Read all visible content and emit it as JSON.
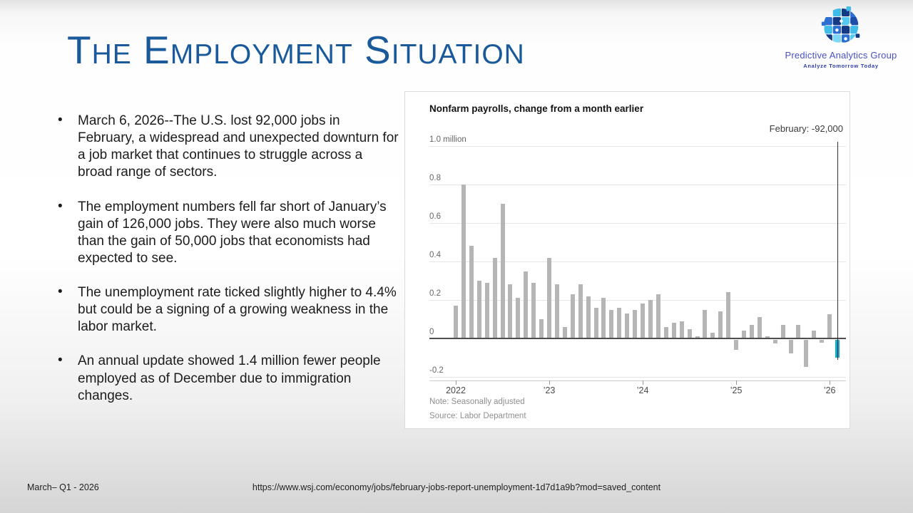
{
  "slide": {
    "title": "The Employment Situation",
    "bullets": [
      "March 6, 2026--The U.S. lost 92,000 jobs in February, a widespread and unexpected downturn for a job market that continues to struggle across a broad range of sectors.",
      "The employment numbers fell far short of January’s gain of 126,000 jobs. They were also much worse than the gain of 50,000 jobs that economists had expected to see.",
      "The unemployment rate ticked slightly higher to 4.4% but could be a signing of a growing weakness in the labor market.",
      "An annual update showed 1.4 million fewer people employed as of December due to immigration changes."
    ],
    "footer": {
      "date": "March– Q1 - 2026",
      "url": "https://www.wsj.com/economy/jobs/february-jobs-report-unemployment-1d7d1a9b?mod=saved_content"
    }
  },
  "logo": {
    "name": "Predictive Analytics Group",
    "tagline": "Analyze Tomorrow Today",
    "colors": {
      "navy": "#153a85",
      "royal": "#2c6fd0",
      "cyan": "#3fbde8",
      "sky": "#7fd7f6",
      "mid": "#55c9f0",
      "deep": "#1d4da8"
    }
  },
  "chart_data": {
    "type": "bar",
    "title": "Nonfarm payrolls, change from a month earlier",
    "annotation_label": "February: -92,000",
    "note": "Note: Seasonally adjusted",
    "source": "Source: Labor Department",
    "unit": "millions of jobs",
    "start_month": "2022-01",
    "frequency": "monthly",
    "ylim": [
      -0.25,
      1.0
    ],
    "grid": true,
    "legend": "none",
    "y_axis": [
      {
        "label": "1.0 million",
        "value": 1.0
      },
      {
        "label": "0.8",
        "value": 0.8
      },
      {
        "label": "0.6",
        "value": 0.6
      },
      {
        "label": "0.4",
        "value": 0.4
      },
      {
        "label": "0.2",
        "value": 0.2
      },
      {
        "label": "0",
        "value": 0
      },
      {
        "label": "-0.2",
        "value": -0.2
      }
    ],
    "x_axis": [
      {
        "label": "2022",
        "month_index": 0
      },
      {
        "label": "’23",
        "month_index": 12
      },
      {
        "label": "’24",
        "month_index": 24
      },
      {
        "label": "’25",
        "month_index": 36
      },
      {
        "label": "’26",
        "month_index": 48
      }
    ],
    "series": [
      {
        "name": "Change from a month earlier (millions)",
        "values": [
          0.17,
          0.8,
          0.48,
          0.3,
          0.29,
          0.42,
          0.7,
          0.28,
          0.21,
          0.35,
          0.29,
          0.1,
          0.42,
          0.28,
          0.06,
          0.23,
          0.28,
          0.22,
          0.16,
          0.21,
          0.15,
          0.16,
          0.13,
          0.15,
          0.18,
          0.2,
          0.23,
          0.06,
          0.08,
          0.09,
          0.05,
          0.01,
          0.15,
          0.03,
          0.14,
          0.24,
          -0.05,
          0.04,
          0.07,
          0.11,
          0.01,
          -0.02,
          0.07,
          -0.07,
          0.07,
          -0.14,
          0.04,
          -0.015,
          0.126,
          -0.092
        ]
      }
    ],
    "highlight_index": 49,
    "colors": {
      "bar": "#b5b5b5",
      "highlight": "#12aacb",
      "zero_line": "#4f4f4f",
      "grid_line": "#e5e5e5",
      "annotation_line": "#2f2f2f"
    }
  }
}
